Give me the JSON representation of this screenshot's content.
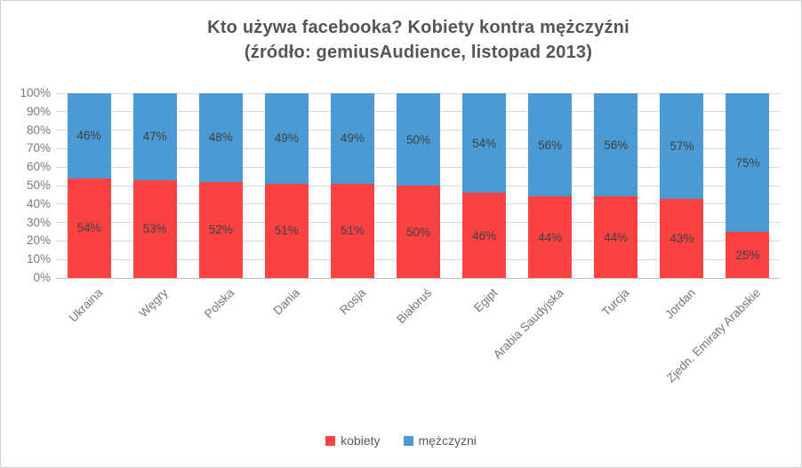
{
  "chart_data": {
    "type": "bar",
    "stacked": true,
    "orientation": "vertical",
    "title": "Kto używa facebooka? Kobiety kontra mężczyźni",
    "subtitle": "(źródło: gemiusAudience, listopad 2013)",
    "categories": [
      "Ukraina",
      "Węgry",
      "Polska",
      "Dania",
      "Rosja",
      "Białoruś",
      "Egipt",
      "Arabia Saudyjska",
      "Turcja",
      "Jordan",
      "Zjedn. Emiraty Arabskie"
    ],
    "series": [
      {
        "name": "kobiety",
        "color": "#FB4243",
        "values": [
          54,
          53,
          52,
          51,
          51,
          50,
          46,
          44,
          44,
          43,
          25
        ]
      },
      {
        "name": "mężczyzni",
        "color": "#4B9AD3",
        "values": [
          46,
          47,
          48,
          49,
          49,
          50,
          54,
          56,
          56,
          57,
          75
        ]
      }
    ],
    "data_label_suffix": "%",
    "y_ticks": [
      "0%",
      "10%",
      "20%",
      "30%",
      "40%",
      "50%",
      "60%",
      "70%",
      "80%",
      "90%",
      "100%"
    ],
    "ylim": [
      0,
      100
    ],
    "grid": true,
    "legend_position": "bottom",
    "colors": {
      "gridline": "#d9d9d9",
      "axis_line": "#bfbfbf",
      "title_text": "#555555",
      "tick_text": "#7a7a7a",
      "data_label_text": "#404040"
    }
  }
}
